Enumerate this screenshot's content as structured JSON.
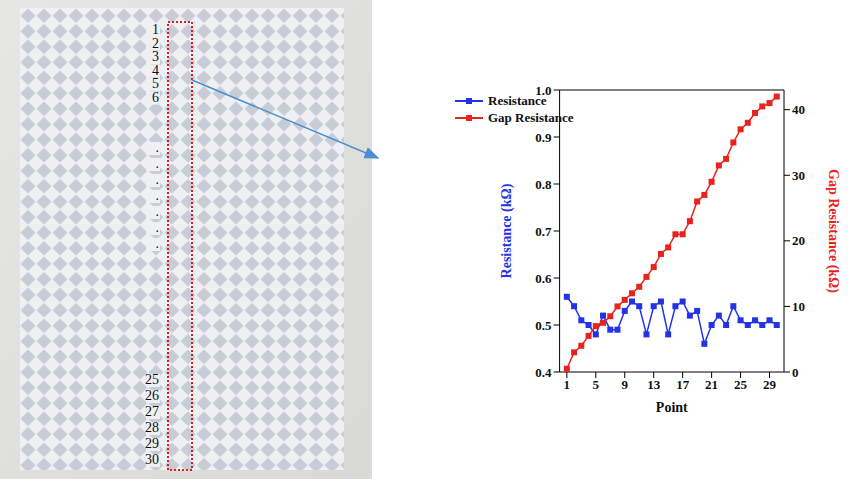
{
  "photo": {
    "row_labels": [
      "1",
      "2",
      "3",
      "4",
      "5",
      "6",
      ".",
      ".",
      ".",
      ".",
      ".",
      ".",
      ".",
      "25",
      "26",
      "27",
      "28",
      "29",
      "30"
    ]
  },
  "chart_data": {
    "type": "line",
    "x_label": "Point",
    "y_label": "Resistance (kΩ)",
    "y2_label": "Gap Resistance (kΩ)",
    "x": [
      1,
      2,
      3,
      4,
      5,
      6,
      7,
      8,
      9,
      10,
      11,
      12,
      13,
      14,
      15,
      16,
      17,
      18,
      19,
      20,
      21,
      22,
      23,
      24,
      25,
      26,
      27,
      28,
      29,
      30
    ],
    "xlim": [
      0,
      31
    ],
    "xticks": [
      1,
      5,
      9,
      13,
      17,
      21,
      25,
      29
    ],
    "ylim": [
      0.4,
      1
    ],
    "yticks": [
      0.4,
      0.5,
      0.6,
      0.7,
      0.8,
      0.9,
      {
        "value": 1,
        "label": "1.0"
      }
    ],
    "y2lim": [
      0,
      43
    ],
    "y2ticks": [
      0,
      10,
      20,
      30,
      40
    ],
    "grid": false,
    "legend": "upper left",
    "series": [
      {
        "name": "Resistance",
        "color": "#2233e6",
        "marker": "square",
        "values": [
          0.56,
          0.54,
          0.51,
          0.5,
          0.48,
          0.52,
          0.49,
          0.49,
          0.53,
          0.55,
          0.54,
          0.48,
          0.54,
          0.55,
          0.48,
          0.54,
          0.55,
          0.52,
          0.53,
          0.46,
          0.5,
          0.52,
          0.5,
          0.54,
          0.51,
          0.5,
          0.51,
          0.5,
          0.51,
          0.5
        ]
      },
      {
        "name": "Gap Resistance",
        "color": "#e8231c",
        "marker": "square",
        "axis": "y2",
        "values": [
          0.5,
          3,
          4,
          5.5,
          7,
          7.5,
          8.5,
          10,
          11,
          12,
          13,
          14.5,
          16,
          18,
          19,
          21,
          21,
          23,
          26,
          27,
          29,
          31.5,
          32.5,
          35,
          37,
          38,
          39.5,
          40.5,
          41,
          42
        ]
      }
    ]
  }
}
